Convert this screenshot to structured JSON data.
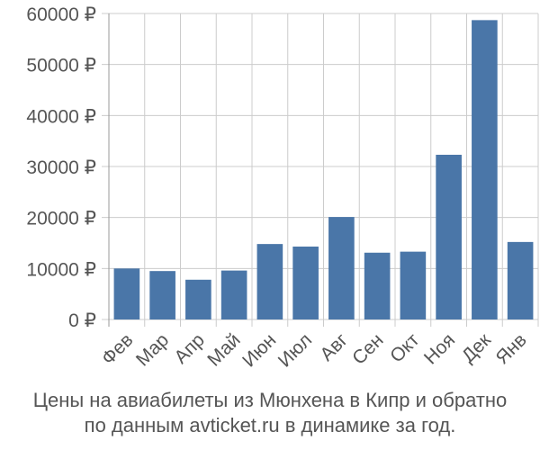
{
  "chart_data": {
    "type": "bar",
    "categories": [
      "Фев",
      "Мар",
      "Апр",
      "Май",
      "Июн",
      "Июл",
      "Авг",
      "Сен",
      "Окт",
      "Ноя",
      "Дек",
      "Янв"
    ],
    "values": [
      10000,
      9500,
      7800,
      9600,
      14800,
      14300,
      20100,
      13100,
      13300,
      32300,
      58700,
      15200
    ],
    "ylim": [
      0,
      60000
    ],
    "yticks": [
      0,
      10000,
      20000,
      30000,
      40000,
      50000,
      60000
    ],
    "ytick_labels": [
      "0 ₽",
      "10000 ₽",
      "20000 ₽",
      "30000 ₽",
      "40000 ₽",
      "50000 ₽",
      "60000 ₽"
    ],
    "grid": true,
    "bar_color": "#4a76a8",
    "grid_color": "#cccccc",
    "axis_text_color": "#555555",
    "title": "",
    "xlabel": "",
    "ylabel": ""
  },
  "caption": {
    "line1": "Цены на авиабилеты из Мюнхена в Кипр и обратно",
    "line2": "по данным avticket.ru в динамике за год."
  }
}
